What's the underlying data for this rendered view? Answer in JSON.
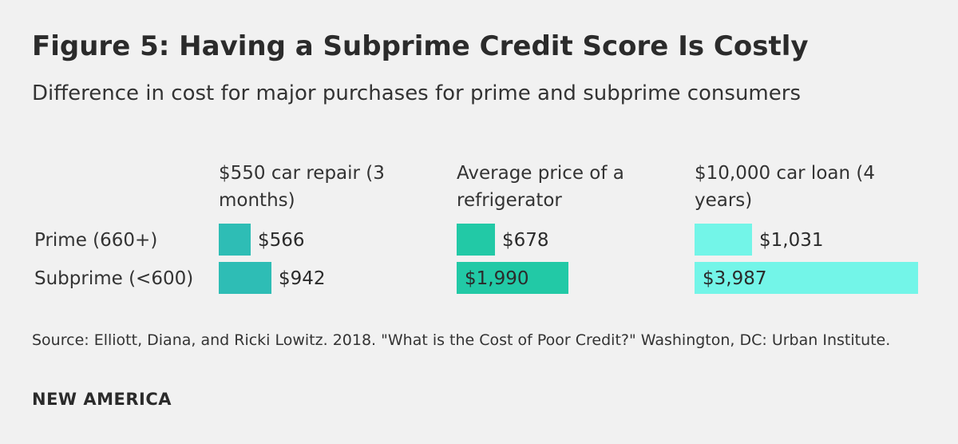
{
  "header": {
    "title": "Figure 5: Having a Subprime Credit Score Is Costly",
    "subtitle": "Difference in cost for major purchases for prime and subprime consumers"
  },
  "footer": {
    "source": "Source: Elliott, Diana, and Ricki Lowitz. 2018. \"What is the Cost of Poor Credit?\" Washington, DC: Urban Institute.",
    "brand": "NEW AMERICA"
  },
  "chart_data": {
    "type": "bar",
    "title": "Figure 5: Having a Subprime Credit Score Is Costly",
    "subtitle": "Difference in cost for major purchases for prime and subprime consumers",
    "rows": [
      "Prime (660+)",
      "Subprime (<600)"
    ],
    "panels": [
      {
        "label_lines": [
          "$550 car repair (3",
          "months)"
        ],
        "color": "#2ebdb5",
        "xlim": [
          0,
          1990
        ],
        "values": [
          566,
          942
        ],
        "labels": [
          "$566",
          "$942"
        ]
      },
      {
        "label_lines": [
          "Average price of a",
          "refrigerator"
        ],
        "color": "#22c9a6",
        "xlim": [
          0,
          1990
        ],
        "values": [
          678,
          1990
        ],
        "labels": [
          "$678",
          "$1,990"
        ]
      },
      {
        "label_lines": [
          "$10,000 car loan (4",
          "years)"
        ],
        "color": "#73f5e8",
        "xlim": [
          0,
          3987
        ],
        "values": [
          1031,
          3987
        ],
        "labels": [
          "$1,031",
          "$3,987"
        ]
      }
    ],
    "grid": false,
    "legend": "none"
  }
}
